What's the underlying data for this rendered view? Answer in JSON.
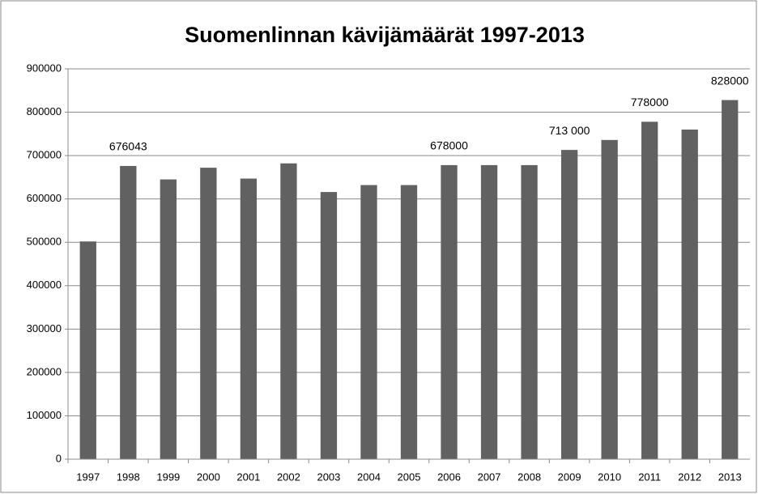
{
  "chart_data": {
    "type": "bar",
    "title": "Suomenlinnan kävijämäärät 1997-2013",
    "categories": [
      "1997",
      "1998",
      "1999",
      "2000",
      "2001",
      "2002",
      "2003",
      "2004",
      "2005",
      "2006",
      "2007",
      "2008",
      "2009",
      "2010",
      "2011",
      "2012",
      "2013"
    ],
    "values": [
      502000,
      676043,
      645000,
      672000,
      647000,
      682000,
      616000,
      632000,
      632000,
      678000,
      678000,
      678000,
      713000,
      736000,
      778000,
      760000,
      828000
    ],
    "value_labels": [
      null,
      "676043",
      null,
      null,
      null,
      null,
      null,
      null,
      null,
      "678000",
      null,
      null,
      "713 000",
      null,
      "778000",
      null,
      "828000"
    ],
    "color": "#616161",
    "ylim": [
      0,
      900000
    ],
    "yticks": [
      0,
      100000,
      200000,
      300000,
      400000,
      500000,
      600000,
      700000,
      800000,
      900000
    ],
    "grid": true
  }
}
